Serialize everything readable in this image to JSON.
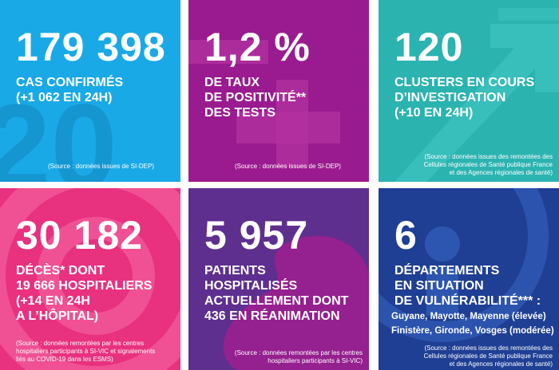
{
  "tiles": {
    "confirmed": {
      "value": "179 398",
      "label_lines": [
        "CAS CONFIRMÉS",
        "(+1 062 EN 24H)"
      ],
      "source": "(Source : données issues de SI-DEP)",
      "bg": "#19a9e6"
    },
    "positivity": {
      "value": "1,2 %",
      "label_lines": [
        "DE TAUX",
        "DE POSITIVITÉ**",
        "DES TESTS"
      ],
      "source": "(Source : données issues de SI-DEP)",
      "bg": "#9a1b8f"
    },
    "clusters": {
      "value": "120",
      "label_lines": [
        "CLUSTERS EN COURS",
        "D’INVESTIGATION",
        "(+10 EN 24H)"
      ],
      "source_lines": [
        "(Source : données issues des remontées des",
        "Cellules régionales de Santé publique France",
        "et des Agences régionales de santé)"
      ],
      "bg": "#2bb3b0"
    },
    "deaths": {
      "value": "30 182",
      "label_lines": [
        "DÉCÈS* DONT",
        "19 666 HOSPITALIERS",
        "(+14 EN 24H",
        "A L’HÔPITAL)"
      ],
      "source_lines": [
        "(Source : données remontées par les centres",
        "hospitaliers participants à SI-VIC et signalements",
        "liés au COVID-19 dans les ESMS)"
      ],
      "bg": "#e8317f"
    },
    "hospitalized": {
      "value": "5 957",
      "label_lines": [
        "PATIENTS",
        "HOSPITALISÉS",
        "ACTUELLEMENT DONT",
        "436 EN RÉANIMATION"
      ],
      "source_lines": [
        "(Source : données remontées par les centres",
        "hospitaliers participants à SI-VIC)"
      ],
      "bg": "#5e2f8f"
    },
    "departments": {
      "value": "6",
      "label_lines": [
        "DÉPARTEMENTS",
        "EN SITUATION",
        "DE VULNÉRABILITÉ*** :"
      ],
      "sub_lines": [
        "Guyane, Mayotte, Mayenne (élevée)",
        "Finistère, Gironde, Vosges (modérée)"
      ],
      "source_lines": [
        "(Source : données issues des remontées des",
        "Cellules régionales de Santé publique France",
        "et des Agences régionales de santé)"
      ],
      "bg": "#1f3f94"
    }
  }
}
